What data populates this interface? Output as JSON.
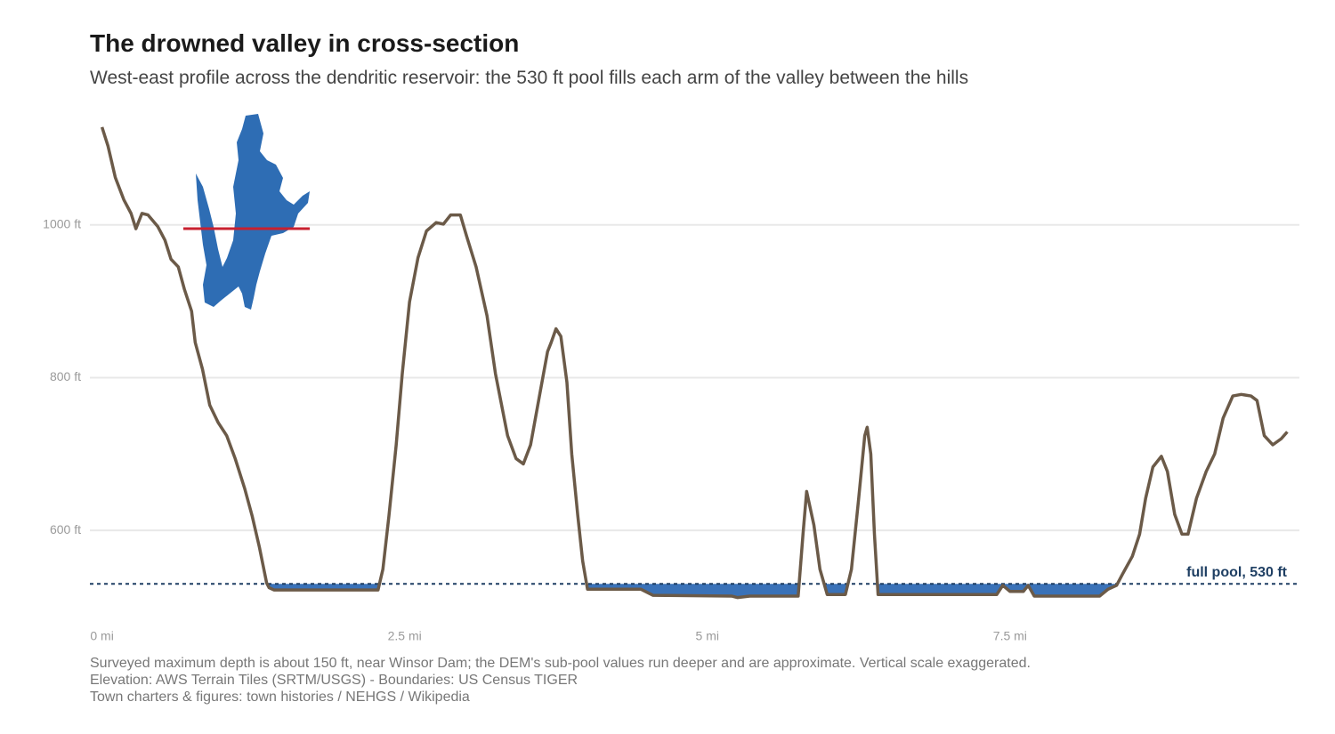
{
  "chart_data": {
    "type": "line",
    "title": "The drowned valley in cross-section",
    "subtitle": "West-east profile across the dendritic reservoir: the 530 ft pool fills each arm of the valley between the hills",
    "x": [
      0,
      0.05,
      0.11,
      0.18,
      0.24,
      0.28,
      0.33,
      0.38,
      0.46,
      0.52,
      0.57,
      0.63,
      0.68,
      0.74,
      0.77,
      0.83,
      0.89,
      0.96,
      1.03,
      1.1,
      1.18,
      1.24,
      1.3,
      1.36,
      1.38,
      1.42,
      2.28,
      2.32,
      2.37,
      2.43,
      2.48,
      2.54,
      2.61,
      2.68,
      2.76,
      2.82,
      2.88,
      2.96,
      3.01,
      3.09,
      3.18,
      3.25,
      3.35,
      3.42,
      3.48,
      3.54,
      3.62,
      3.68,
      3.71,
      3.75,
      3.79,
      3.84,
      3.88,
      3.93,
      3.97,
      4.01,
      4.45,
      4.55,
      5.2,
      5.25,
      5.35,
      5.75,
      5.79,
      5.82,
      5.88,
      5.93,
      5.99,
      6.14,
      6.19,
      6.25,
      6.3,
      6.32,
      6.35,
      6.38,
      6.41,
      7.39,
      7.44,
      7.5,
      7.61,
      7.65,
      7.7,
      8.24,
      8.31,
      8.38,
      8.43,
      8.51,
      8.57,
      8.62,
      8.68,
      8.75,
      8.8,
      8.86,
      8.92,
      8.97,
      9.04,
      9.12,
      9.19,
      9.26,
      9.34,
      9.41,
      9.49,
      9.54,
      9.6,
      9.67,
      9.74,
      9.79
    ],
    "values": [
      1128,
      1103,
      1062,
      1033,
      1015,
      995,
      1015,
      1013,
      998,
      980,
      955,
      945,
      916,
      887,
      846,
      811,
      764,
      741,
      724,
      694,
      654,
      619,
      578,
      531,
      525,
      522,
      522,
      549,
      619,
      712,
      805,
      899,
      957,
      992,
      1003,
      1001,
      1013,
      1013,
      986,
      945,
      881,
      805,
      724,
      694,
      687,
      712,
      782,
      834,
      846,
      864,
      854,
      794,
      700,
      619,
      560,
      523,
      523,
      515,
      514,
      512,
      514,
      514,
      595,
      651,
      607,
      549,
      516,
      516,
      549,
      642,
      724,
      735,
      700,
      595,
      516,
      516,
      528,
      520,
      520,
      528,
      514,
      514,
      523,
      528,
      543,
      566,
      595,
      642,
      683,
      697,
      677,
      621,
      595,
      595,
      642,
      677,
      700,
      747,
      776,
      778,
      776,
      770,
      724,
      712,
      720,
      729
    ],
    "color": "#6b5a48",
    "water_color": "#3a72b8",
    "reference_line": {
      "value": 530,
      "label": "full pool, 530 ft",
      "color": "#1f3f63"
    },
    "xlim": [
      -0.1,
      9.89
    ],
    "ylim": [
      479,
      1143
    ],
    "xticks": [
      {
        "value": 0,
        "label": "0 mi"
      },
      {
        "value": 2.5,
        "label": "2.5 mi"
      },
      {
        "value": 5,
        "label": "5 mi"
      },
      {
        "value": 7.5,
        "label": "7.5 mi"
      }
    ],
    "yticks": [
      {
        "value": 600,
        "label": "600 ft"
      },
      {
        "value": 800,
        "label": "800 ft"
      },
      {
        "value": 1000,
        "label": "1000 ft"
      }
    ],
    "grid": true,
    "notes": [
      "Surveyed maximum depth is about 150 ft, near Winsor Dam; the DEM's sub-pool values run deeper and are approximate. Vertical scale exaggerated.",
      "Elevation: AWS Terrain Tiles (SRTM/USGS)  -  Boundaries: US Census TIGER",
      "Town charters & figures: town histories / NEHGS / Wikipedia"
    ]
  }
}
